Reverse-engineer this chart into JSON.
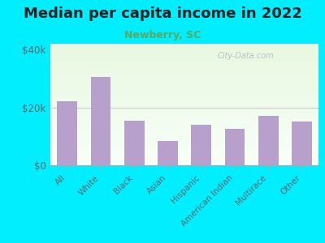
{
  "title": "Median per capita income in 2022",
  "subtitle": "Newberry, SC",
  "categories": [
    "All",
    "White",
    "Black",
    "Asian",
    "Hispanic",
    "American Indian",
    "Multirace",
    "Other"
  ],
  "values": [
    22000,
    30500,
    15500,
    8500,
    14000,
    12500,
    17000,
    15000
  ],
  "bar_color": "#b8a0cc",
  "background_outer": "#00eeff",
  "title_color": "#222222",
  "subtitle_color": "#7a7a7a",
  "subtitle_green": "#5aaa5a",
  "tick_color": "#666666",
  "watermark": "City-Data.com",
  "ylim": [
    0,
    42000
  ],
  "yticks": [
    0,
    20000,
    40000
  ],
  "ytick_labels": [
    "$0",
    "$20k",
    "$40k"
  ],
  "title_fontsize": 13,
  "subtitle_fontsize": 9
}
